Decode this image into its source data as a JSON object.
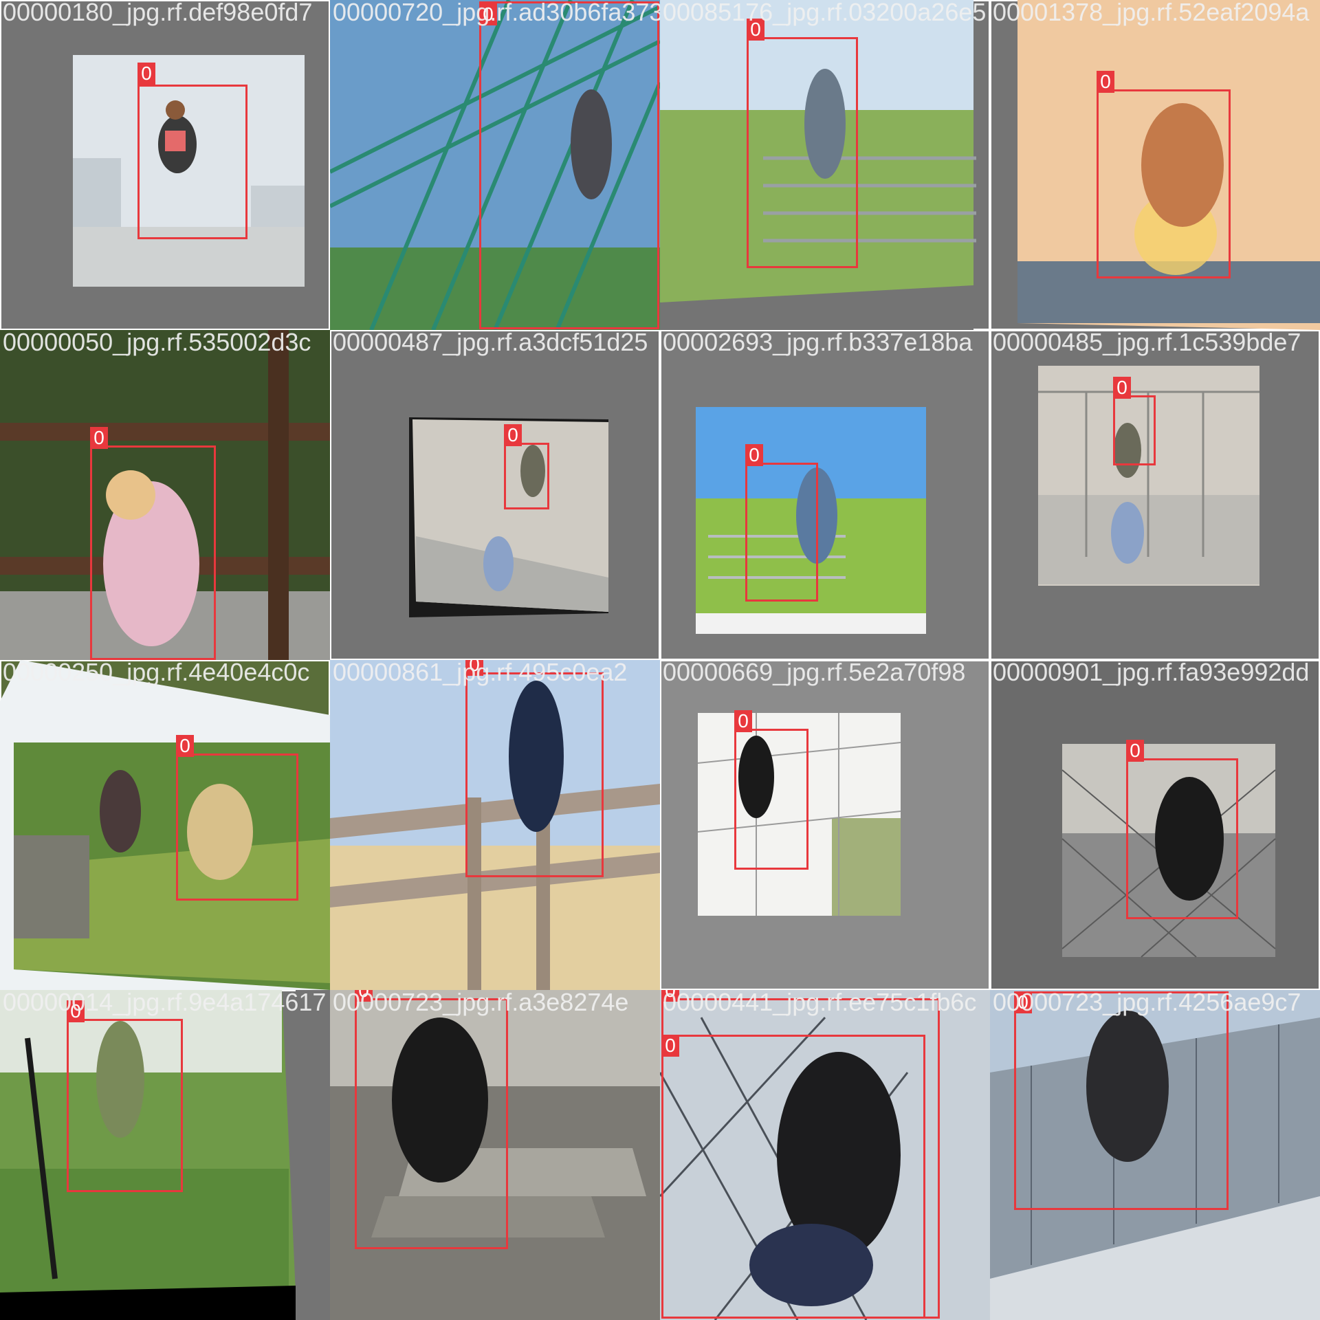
{
  "tiles": [
    {
      "filename": "00000180_jpg.rf.def98e0fd7",
      "labels": [
        "0"
      ],
      "colors": {
        "background": "#747474",
        "photo": "#d9dfe4"
      }
    },
    {
      "filename": "00000720_jpg.rf.ad30b6fa373",
      "labels": [
        "0"
      ],
      "colors": {
        "background": "#5a8bbd",
        "photo": "#2e7a6a"
      }
    },
    {
      "filename": "00085176_jpg.rf.03200a26e5",
      "labels": [
        "0"
      ],
      "colors": {
        "background": "#747474",
        "photo": "#8fb05c"
      }
    },
    {
      "filename": "00001378_jpg.rf.52eaf2094a",
      "labels": [
        "0"
      ],
      "colors": {
        "background": "#747474",
        "photo": "#e8a57a"
      }
    },
    {
      "filename": "00000050_jpg.rf.535002d3c",
      "labels": [
        "0"
      ],
      "colors": {
        "background": "#2f3a24",
        "photo": "#4b6b2e"
      }
    },
    {
      "filename": "00000487_jpg.rf.a3dcf51d25",
      "labels": [
        "0"
      ],
      "colors": {
        "background": "#747474",
        "photo": "#c9c9c4"
      }
    },
    {
      "filename": "00002693_jpg.rf.b337e18ba",
      "labels": [
        "0"
      ],
      "colors": {
        "background": "#7a7a7a",
        "photo": "#8fbf4a"
      }
    },
    {
      "filename": "00000485_jpg.rf.1c539bde7",
      "labels": [
        "0"
      ],
      "colors": {
        "background": "#747474",
        "photo": "#cfcac2"
      }
    },
    {
      "filename": "00000250_jpg.rf.4e40e4c0c",
      "labels": [
        "0"
      ],
      "colors": {
        "background": "#5a6e3a",
        "photo": "#7a9a3a"
      }
    },
    {
      "filename": "00000861_jpg.rf.495c0ea2",
      "labels": [
        "0"
      ],
      "colors": {
        "background": "#cdd8e6",
        "photo": "#e2cf9e"
      }
    },
    {
      "filename": "00000669_jpg.rf.5e2a70f98",
      "labels": [
        "0"
      ],
      "colors": {
        "background": "#8c8c8c",
        "photo": "#f3f3f1"
      }
    },
    {
      "filename": "00000901_jpg.rf.fa93e992dd",
      "labels": [
        "0"
      ],
      "colors": {
        "background": "#6b6b6b",
        "photo": "#878787"
      }
    },
    {
      "filename": "00000014_jpg.rf.9e4a174617",
      "labels": [
        "0"
      ],
      "colors": {
        "background": "#000000",
        "photo": "#5a8a3a"
      }
    },
    {
      "filename": "00000723_jpg.rf.a3e8274e",
      "labels": [
        "0"
      ],
      "colors": {
        "background": "#5c5c5c",
        "photo": "#8a8a86"
      }
    },
    {
      "filename": "00000441_jpg.rf.ee75c1fb6c",
      "labels": [
        "0",
        "0"
      ],
      "colors": {
        "background": "#b9c0c8",
        "photo": "#2e3a4e"
      }
    },
    {
      "filename": "00000723_jpg.rf.4256ae9c7",
      "labels": [
        "0"
      ],
      "colors": {
        "background": "#aebccc",
        "photo": "#98a6b4"
      }
    }
  ]
}
